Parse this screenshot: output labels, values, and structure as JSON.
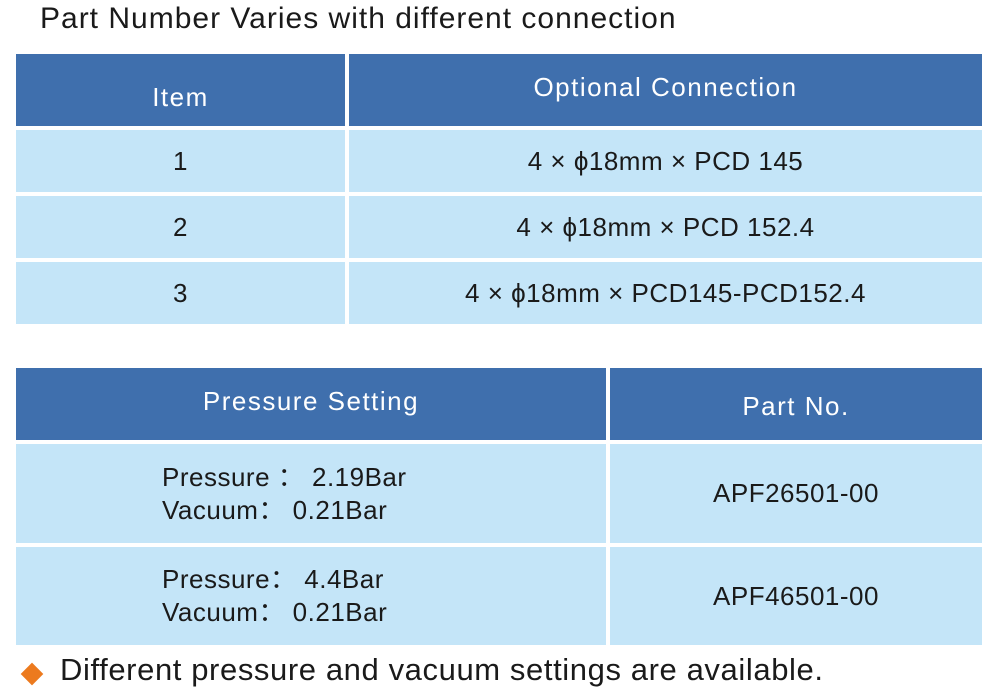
{
  "title": "Part Number Varies with different connection",
  "connection_table": {
    "headers": [
      "Item",
      "Optional Connection"
    ],
    "rows": [
      [
        "1",
        "4 × ϕ18mm × PCD 145"
      ],
      [
        "2",
        "4 × ϕ18mm × PCD 152.4"
      ],
      [
        "3",
        "4 × ϕ18mm × PCD145-PCD152.4"
      ]
    ]
  },
  "pressure_table": {
    "headers": [
      "Pressure Setting",
      "Part No."
    ],
    "rows": [
      {
        "pressure": "Pressure ： 2.19Bar",
        "vacuum": "Vacuum： 0.21Bar",
        "part_no": "APF26501-00"
      },
      {
        "pressure": "Pressure： 4.4Bar",
        "vacuum": "Vacuum： 0.21Bar",
        "part_no": "APF46501-00"
      }
    ]
  },
  "note": {
    "icon": "orange-diamond-bullet",
    "text": "Different pressure and vacuum settings are available.",
    "color": "#ec7a1e"
  },
  "colors": {
    "header": "#3f6fad",
    "row": "#c4e5f8"
  }
}
